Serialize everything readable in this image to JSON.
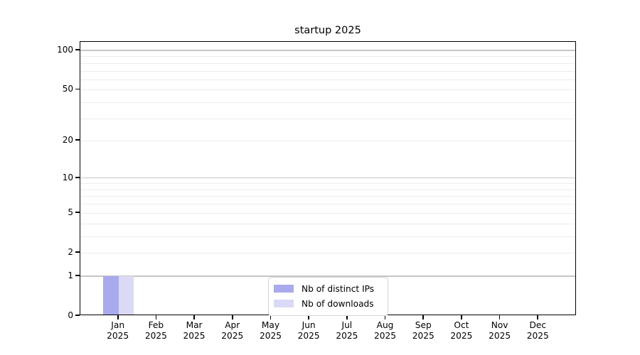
{
  "title": "startup 2025",
  "chart_data": {
    "type": "bar",
    "title": "startup 2025",
    "x_categories": [
      "Jan 2025",
      "Feb 2025",
      "Mar 2025",
      "Apr 2025",
      "May 2025",
      "Jun 2025",
      "Jul 2025",
      "Aug 2025",
      "Sep 2025",
      "Oct 2025",
      "Nov 2025",
      "Dec 2025"
    ],
    "series": [
      {
        "name": "Nb of distinct IPs",
        "color": "#a9a9ee",
        "values": [
          1,
          0,
          0,
          0,
          0,
          0,
          0,
          0,
          0,
          0,
          0,
          0
        ]
      },
      {
        "name": "Nb of downloads",
        "color": "#dadaf6",
        "values": [
          1,
          0,
          0,
          0,
          0,
          0,
          0,
          0,
          0,
          0,
          0,
          0
        ]
      }
    ],
    "y_scale": "symlog-ln(1+v)",
    "y_ticks": [
      0,
      1,
      2,
      5,
      10,
      20,
      50,
      100
    ],
    "y_gridlines_major": [
      1,
      10,
      100
    ],
    "y_gridlines_minor": [
      2,
      3,
      4,
      5,
      6,
      7,
      8,
      9,
      20,
      30,
      40,
      50,
      60,
      70,
      80,
      90
    ],
    "ylim": [
      0,
      115
    ],
    "xlabel": "",
    "ylabel": "",
    "grid": true,
    "legend_position": "bottom-center"
  },
  "colors": {
    "background": "#ffffff",
    "spine": "#000000",
    "grid_major": "#c6c6c6",
    "grid_minor": "#ececec",
    "text": "#000000",
    "legend_border": "#d5d5d5"
  }
}
